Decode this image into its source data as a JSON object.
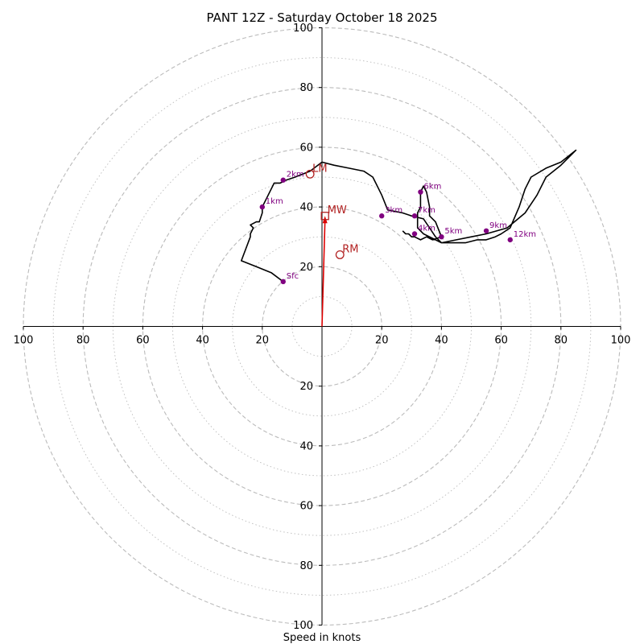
{
  "chart_data": {
    "type": "line",
    "title": "PANT 12Z - Saturday October 18 2025",
    "xlabel": "Speed in knots",
    "ylabel": "",
    "xlim": [
      -100,
      100
    ],
    "ylim": [
      -100,
      100
    ],
    "grid": true,
    "rings_major": [
      20,
      40,
      60,
      80,
      100
    ],
    "rings_minor": [
      10,
      30,
      50,
      70,
      90
    ],
    "x_tick_labels": [
      "100",
      "80",
      "60",
      "40",
      "20",
      "20",
      "40",
      "60",
      "80",
      "100"
    ],
    "x_tick_values": [
      -100,
      -80,
      -60,
      -40,
      -20,
      20,
      40,
      60,
      80,
      100
    ],
    "y_tick_labels": [
      "100",
      "80",
      "60",
      "40",
      "20",
      "20",
      "40",
      "60",
      "80",
      "100"
    ],
    "y_tick_values": [
      100,
      80,
      60,
      40,
      20,
      -20,
      -40,
      -60,
      -80,
      -100
    ],
    "colors": {
      "hodograph": "#000000",
      "height_marker": "#800080",
      "storm_motion": "#b22222",
      "mean_wind_arrow": "#dd0000",
      "grid": "#bbbbbb"
    },
    "hodograph": {
      "u": [
        -13,
        -17,
        -22,
        -27,
        -24,
        -24,
        -23,
        -24,
        -22,
        -21,
        -20,
        -20,
        -19,
        -17,
        -16,
        -14,
        -12,
        -9,
        -4,
        0,
        4,
        9,
        14,
        17,
        18,
        20,
        22,
        27,
        30,
        34,
        36,
        38,
        40,
        45,
        50,
        55,
        62,
        68,
        72,
        75,
        80,
        85,
        80,
        75,
        70,
        68,
        66,
        63,
        60,
        58,
        55,
        52,
        48,
        45,
        43,
        40,
        38,
        36,
        34,
        33,
        32,
        32,
        33,
        33,
        33,
        34,
        35,
        36,
        36,
        38,
        40,
        37,
        35,
        33,
        31,
        30,
        29,
        28,
        27
      ],
      "v": [
        15,
        18,
        20,
        22,
        30,
        31,
        33,
        34,
        35,
        35,
        38,
        40,
        42,
        46,
        48,
        48,
        49,
        50,
        52,
        55,
        54,
        53,
        52,
        50,
        48,
        44,
        39,
        38,
        37,
        36,
        33,
        30,
        28,
        29,
        30,
        31,
        33,
        38,
        44,
        50,
        54,
        59,
        55,
        53,
        50,
        46,
        40,
        33,
        31,
        30,
        29,
        29,
        28,
        28,
        28,
        28,
        29,
        30,
        31,
        32,
        33,
        38,
        40,
        42,
        45,
        47,
        45,
        40,
        37,
        35,
        30,
        29,
        30,
        29,
        30,
        30,
        31,
        31,
        32
      ]
    },
    "height_markers": [
      {
        "label": "Sfc",
        "u": -13,
        "v": 15
      },
      {
        "label": "1km",
        "u": -20,
        "v": 40
      },
      {
        "label": "2km",
        "u": -13,
        "v": 49
      },
      {
        "label": "3km",
        "u": 20,
        "v": 37
      },
      {
        "label": "4km",
        "u": 31,
        "v": 31
      },
      {
        "label": "5km",
        "u": 40,
        "v": 30
      },
      {
        "label": "6km",
        "u": 33,
        "v": 45
      },
      {
        "label": "7km",
        "u": 31,
        "v": 37
      },
      {
        "label": "9km",
        "u": 55,
        "v": 32
      },
      {
        "label": "12km",
        "u": 63,
        "v": 29
      }
    ],
    "storm_motion": [
      {
        "label": "LM",
        "u": -4,
        "v": 51,
        "marker": "circle"
      },
      {
        "label": "RM",
        "u": 6,
        "v": 24,
        "marker": "circle"
      },
      {
        "label": "MW",
        "u": 1,
        "v": 37,
        "marker": "square"
      }
    ],
    "mean_wind_vector": {
      "u": 1,
      "v": 37
    }
  }
}
